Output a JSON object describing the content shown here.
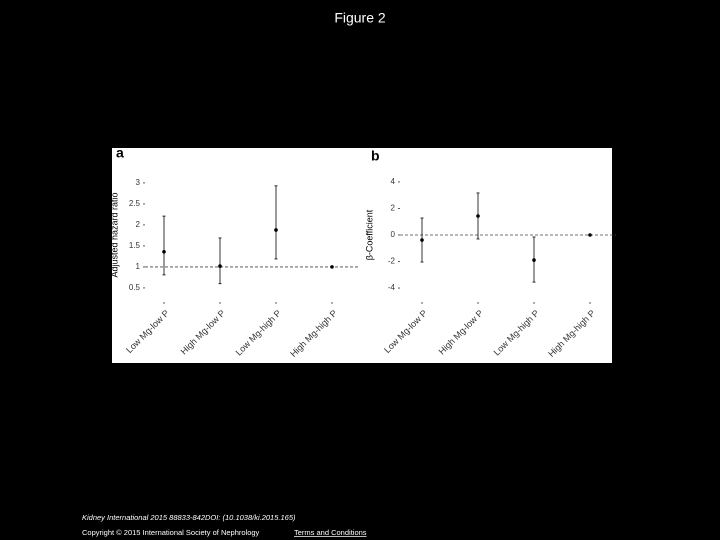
{
  "page_title": "Figure 2",
  "footer": {
    "citation": "Kidney International 2015 88833-842DOI: (10.1038/ki.2015.165)",
    "copyright": "Copyright © 2015 International Society of Nephrology",
    "link": "Terms and Conditions"
  },
  "chart_data": [
    {
      "type": "errorbar",
      "panel_label": "a",
      "y_label": "Adjusted hazard ratio",
      "categories": [
        "Low Mg-low P",
        "High Mg-low P",
        "Low Mg-high P",
        "High Mg-high P"
      ],
      "values": [
        1.36,
        1.02,
        1.88,
        1.0
      ],
      "lower": [
        0.81,
        0.6,
        1.19,
        null
      ],
      "upper": [
        2.21,
        1.69,
        2.93,
        null
      ],
      "reference_line": 1,
      "ylim": [
        0.26,
        3.26
      ],
      "yticks": [
        0.5,
        1,
        1.5,
        2,
        2.5,
        3
      ],
      "color": "#000000"
    },
    {
      "type": "errorbar",
      "panel_label": "b",
      "y_label": "β-Coefficient",
      "categories": [
        "Low Mg-low P",
        "High Mg-low P",
        "Low Mg-high P",
        "High Mg-high P"
      ],
      "values": [
        -0.38,
        1.43,
        -1.89,
        0
      ],
      "lower": [
        -2.04,
        -0.3,
        -3.55,
        null
      ],
      "upper": [
        1.28,
        3.17,
        -0.15,
        null
      ],
      "reference_line": 0,
      "ylim": [
        -4.75,
        4.75
      ],
      "yticks": [
        -4,
        -2,
        0,
        2,
        4
      ],
      "color": "#000000"
    }
  ]
}
